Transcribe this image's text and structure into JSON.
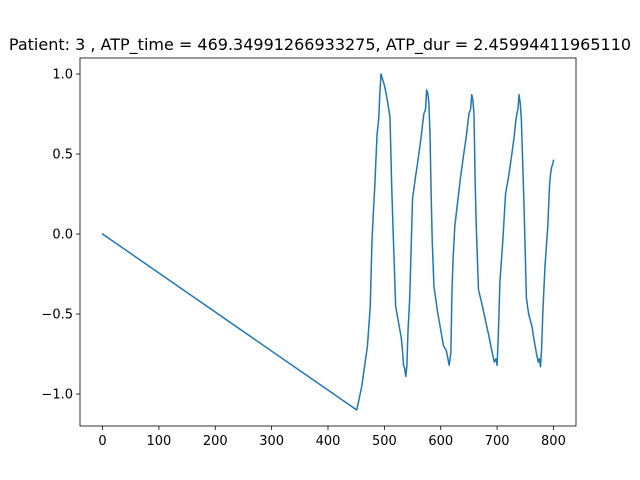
{
  "chart_data": {
    "type": "line",
    "title": "Patient: 3 , ATP_time = 469.34991266933275, ATP_dur = 2.45994411965110",
    "xlabel": "",
    "ylabel": "",
    "xlim": [
      -40,
      840
    ],
    "ylim": [
      -1.2,
      1.1
    ],
    "xticks": [
      0,
      100,
      200,
      300,
      400,
      500,
      600,
      700,
      800
    ],
    "xtick_labels": [
      "0",
      "100",
      "200",
      "300",
      "400",
      "500",
      "600",
      "700",
      "800"
    ],
    "yticks": [
      -1.0,
      -0.5,
      0.0,
      0.5,
      1.0
    ],
    "ytick_labels": [
      "−1.0",
      "−0.5",
      "0.0",
      "0.5",
      "1.0"
    ],
    "grid": false,
    "series": [
      {
        "color": "#1f77b4",
        "x": [
          0,
          451,
          460,
          470,
          475,
          478,
          480,
          483,
          487,
          490,
          492,
          494,
          500,
          503,
          506,
          510,
          513,
          516,
          520,
          525,
          530,
          532,
          534,
          536,
          538,
          540,
          542,
          545,
          550,
          555,
          560,
          565,
          570,
          573,
          575,
          577,
          579,
          581,
          583,
          585,
          588,
          591,
          594,
          600,
          605,
          610,
          615,
          618,
          620,
          622,
          625,
          630,
          635,
          640,
          645,
          650,
          653,
          655,
          657,
          659,
          661,
          663,
          667,
          672,
          680,
          685,
          690,
          695,
          698,
          700,
          702,
          705,
          710,
          715,
          720,
          725,
          730,
          733,
          735,
          737,
          739,
          741,
          743,
          748,
          752,
          756,
          762,
          765,
          770,
          773,
          775,
          777,
          779,
          781,
          783,
          785,
          790,
          793,
          795,
          797,
          799,
          800
        ],
        "y": [
          0.0,
          -1.1,
          -0.95,
          -0.7,
          -0.45,
          -0.05,
          0.1,
          0.3,
          0.62,
          0.72,
          0.88,
          1.0,
          0.93,
          0.88,
          0.82,
          0.73,
          0.3,
          -0.03,
          -0.45,
          -0.55,
          -0.65,
          -0.72,
          -0.82,
          -0.84,
          -0.89,
          -0.82,
          -0.6,
          -0.4,
          0.22,
          0.35,
          0.47,
          0.6,
          0.75,
          0.78,
          0.9,
          0.88,
          0.82,
          0.62,
          0.25,
          -0.05,
          -0.33,
          -0.4,
          -0.48,
          -0.6,
          -0.7,
          -0.73,
          -0.82,
          -0.74,
          -0.35,
          -0.15,
          0.05,
          0.2,
          0.35,
          0.48,
          0.6,
          0.75,
          0.78,
          0.87,
          0.84,
          0.75,
          0.35,
          0.05,
          -0.35,
          -0.42,
          -0.55,
          -0.63,
          -0.72,
          -0.8,
          -0.78,
          -0.82,
          -0.65,
          -0.3,
          -0.05,
          0.25,
          0.35,
          0.47,
          0.6,
          0.7,
          0.75,
          0.78,
          0.87,
          0.82,
          0.72,
          0.15,
          -0.4,
          -0.5,
          -0.58,
          -0.65,
          -0.75,
          -0.8,
          -0.78,
          -0.83,
          -0.72,
          -0.5,
          -0.35,
          -0.2,
          0.05,
          0.3,
          0.38,
          0.42,
          0.44,
          0.46
        ]
      }
    ]
  }
}
